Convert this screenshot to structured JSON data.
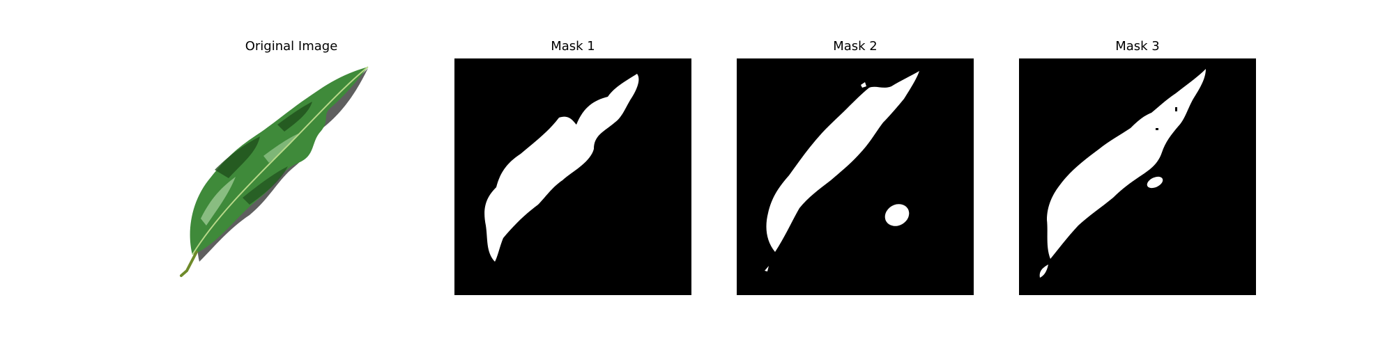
{
  "figure": {
    "panels": [
      {
        "title": "Original Image"
      },
      {
        "title": "Mask 1"
      },
      {
        "title": "Mask 2"
      },
      {
        "title": "Mask 3"
      }
    ]
  },
  "colors": {
    "background": "#ffffff",
    "mask_background": "#000000",
    "mask_foreground": "#ffffff",
    "leaf_green": "#3f8a3a",
    "leaf_dark": "#1f4f1c",
    "shadow": "#2a2a2a"
  }
}
